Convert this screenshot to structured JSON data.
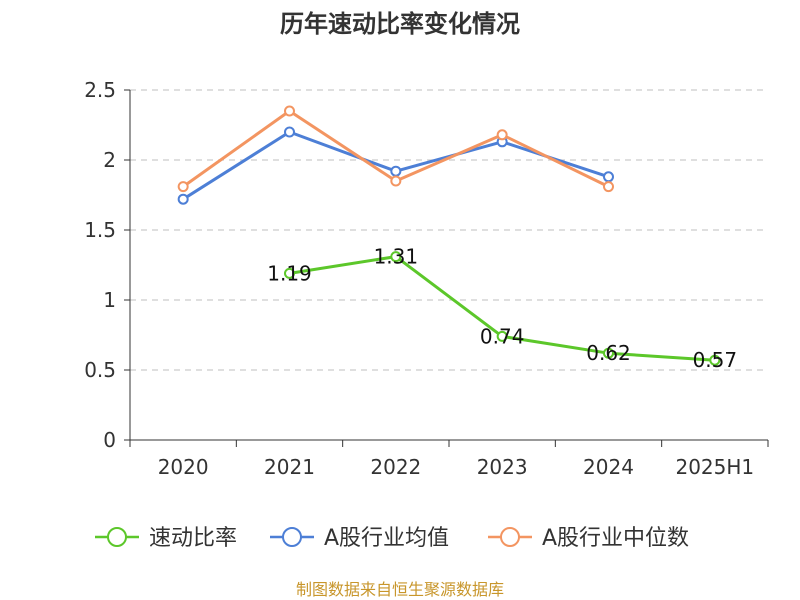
{
  "chart_data": {
    "type": "line",
    "title": "历年速动比率变化情况",
    "categories": [
      "2020",
      "2021",
      "2022",
      "2023",
      "2024",
      "2025H1"
    ],
    "y_ticks": [
      "0",
      "0.5",
      "1",
      "1.5",
      "2",
      "2.5"
    ],
    "ylim": [
      0,
      2.5
    ],
    "grid": true,
    "legend_position": "bottom",
    "series": [
      {
        "name": "速动比率",
        "color": "#5cc72a",
        "values": [
          null,
          1.19,
          1.31,
          0.74,
          0.62,
          0.57
        ],
        "labels": [
          "",
          "1.19",
          "1.31",
          "0.74",
          "0.62",
          "0.57"
        ]
      },
      {
        "name": "A股行业均值",
        "color": "#4d7fd6",
        "values": [
          1.72,
          2.2,
          1.92,
          2.13,
          1.88,
          null
        ]
      },
      {
        "name": "A股行业中位数",
        "color": "#f39561",
        "values": [
          1.81,
          2.35,
          1.85,
          2.18,
          1.81,
          null
        ]
      }
    ],
    "source": "制图数据来自恒生聚源数据库"
  }
}
